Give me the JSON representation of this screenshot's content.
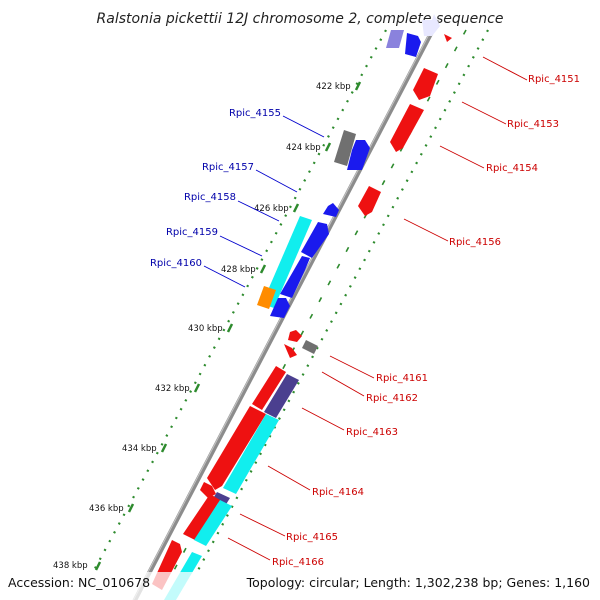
{
  "title": "Ralstonia pickettii 12J chromosome 2, complete sequence",
  "footer": {
    "accession": "Accession: NC_010678",
    "summary": "Topology: circular; Length: 1,302,238 bp; Genes: 1,160"
  },
  "colors": {
    "forward_label": "#cc0000",
    "reverse_label": "#0000aa",
    "backbone": "#808080",
    "tick": "#2e8b2e",
    "red": "#ee1111",
    "blue": "#1a1aee",
    "cyan": "#11eeee",
    "gray": "#707070",
    "orange": "#ff8c00",
    "navy": "#4b3f8f",
    "lavender": "#8a82dd"
  },
  "ticks": [
    {
      "label": "422 kbp"
    },
    {
      "label": "424 kbp"
    },
    {
      "label": "426 kbp"
    },
    {
      "label": "428 kbp"
    },
    {
      "label": "430 kbp"
    },
    {
      "label": "432 kbp"
    },
    {
      "label": "434 kbp"
    },
    {
      "label": "436 kbp"
    },
    {
      "label": "438 kbp"
    }
  ],
  "gene_labels": {
    "forward": [
      "Rpic_4151",
      "Rpic_4153",
      "Rpic_4154",
      "Rpic_4156",
      "Rpic_4161",
      "Rpic_4162",
      "Rpic_4163",
      "Rpic_4164",
      "Rpic_4165",
      "Rpic_4166"
    ],
    "reverse": [
      "Rpic_4155",
      "Rpic_4157",
      "Rpic_4158",
      "Rpic_4159",
      "Rpic_4160"
    ]
  }
}
